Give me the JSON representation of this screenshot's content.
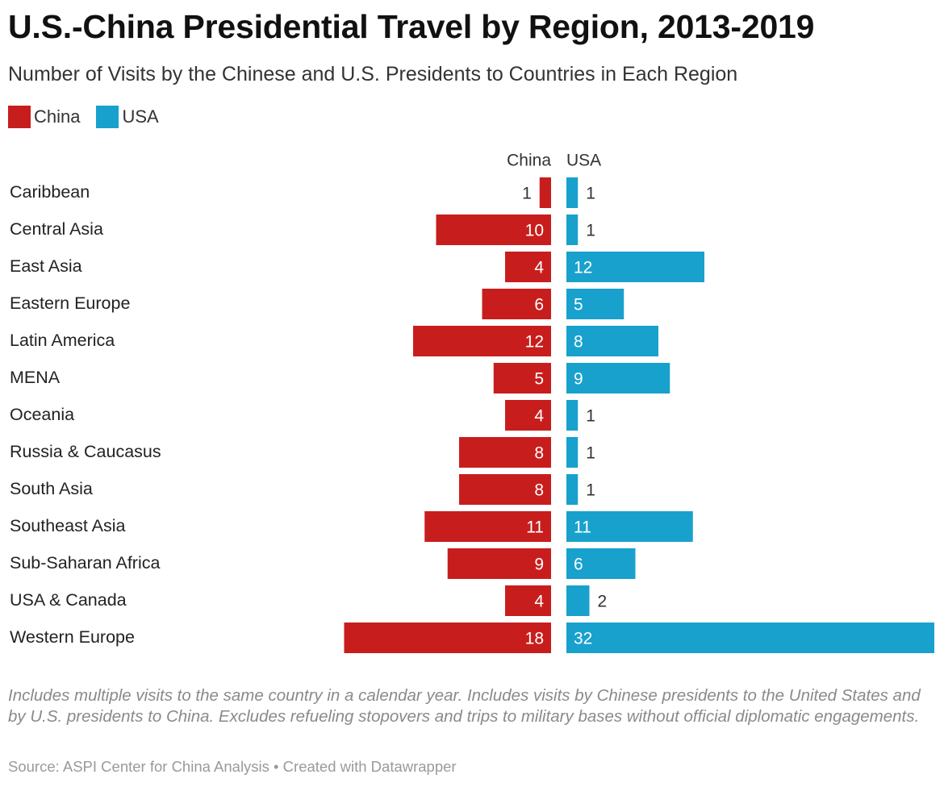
{
  "title": "U.S.-China Presidential Travel by Region, 2013-2019",
  "subtitle": "Number of Visits by the Chinese and U.S. Presidents to Countries in Each Region",
  "legend": [
    {
      "label": "China",
      "color": "#c71e1d"
    },
    {
      "label": "USA",
      "color": "#18a1cd"
    }
  ],
  "notes": "Includes multiple visits to the same country in a calendar year. Includes visits by Chinese presidents to the United States and by U.S. presidents to China. Excludes refueling stopovers and trips to military bases without official diplomatic engagements.",
  "source": "Source: ASPI Center for China Analysis • Created with Datawrapper",
  "chart_data": {
    "type": "bar",
    "orientation": "horizontal-diverging",
    "column_headers": [
      "China",
      "USA"
    ],
    "categories": [
      "Caribbean",
      "Central Asia",
      "East Asia",
      "Eastern Europe",
      "Latin America",
      "MENA",
      "Oceania",
      "Russia & Caucasus",
      "South Asia",
      "Southeast Asia",
      "Sub-Saharan Africa",
      "USA & Canada",
      "Western Europe"
    ],
    "series": [
      {
        "name": "China",
        "color": "#c71e1d",
        "values": [
          1,
          10,
          4,
          6,
          12,
          5,
          4,
          8,
          8,
          11,
          9,
          4,
          18
        ]
      },
      {
        "name": "USA",
        "color": "#18a1cd",
        "values": [
          1,
          1,
          12,
          5,
          8,
          9,
          1,
          1,
          1,
          11,
          6,
          2,
          32
        ]
      }
    ],
    "xlim": [
      0,
      32
    ],
    "grid": false,
    "legend_position": "top-left"
  }
}
